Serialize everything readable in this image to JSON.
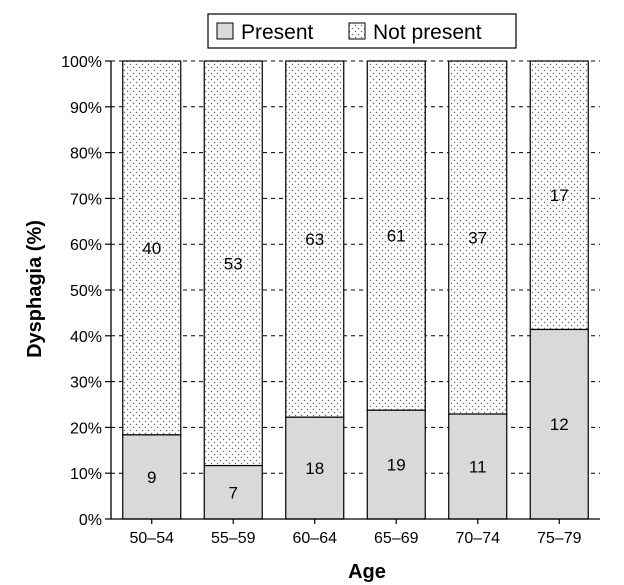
{
  "chart_data": {
    "type": "bar",
    "stacked": true,
    "normalized": true,
    "categories": [
      "50–54",
      "55–59",
      "60–64",
      "65–69",
      "70–74",
      "75–79"
    ],
    "series": [
      {
        "name": "Present",
        "values": [
          9,
          7,
          18,
          19,
          11,
          12
        ],
        "color": "#d9d9d9",
        "pattern": "solid"
      },
      {
        "name": "Not present",
        "values": [
          40,
          53,
          63,
          61,
          37,
          17
        ],
        "color": "#ffffff",
        "pattern": "dotted"
      }
    ],
    "title": "",
    "xlabel": "Age",
    "ylabel": "Dysphagia (%)",
    "ylim": [
      0,
      100
    ],
    "yticks": [
      "0%",
      "10%",
      "20%",
      "30%",
      "40%",
      "50%",
      "60%",
      "70%",
      "80%",
      "90%",
      "100%"
    ],
    "grid": "horizontal-dashed",
    "legend": "top"
  }
}
